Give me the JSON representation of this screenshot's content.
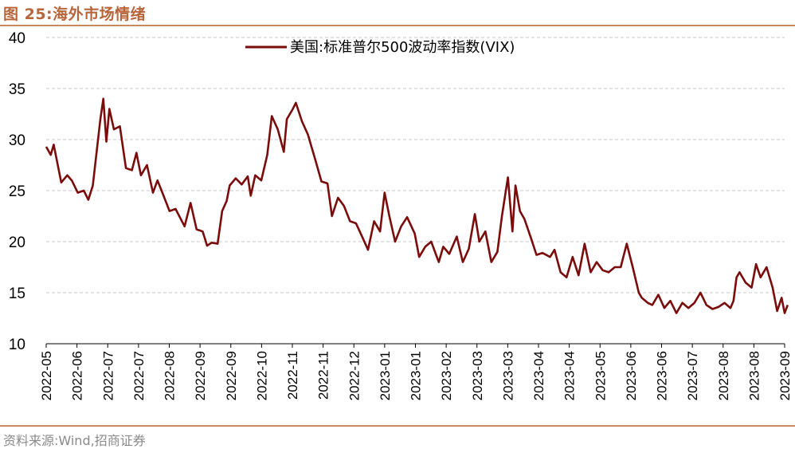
{
  "header": {
    "title": "图 25:海外市场情绪"
  },
  "footer": {
    "source": "资料来源:Wind,招商证券"
  },
  "colors": {
    "line": "#7b0c0c",
    "grid": "#c8c8c8",
    "accent": "#c88a5e"
  },
  "chart_data": {
    "type": "line",
    "title": "",
    "xlabel": "",
    "ylabel": "",
    "ylim": [
      10,
      40
    ],
    "yticks": [
      10,
      15,
      20,
      25,
      30,
      35,
      40
    ],
    "grid": "horizontal dashed",
    "legend_position": "top-center",
    "x_tick_labels": [
      "2022-05",
      "2022-06",
      "2022-07",
      "2022-07",
      "2022-08",
      "2022-09",
      "2022-09",
      "2022-10",
      "2022-11",
      "2022-11",
      "2022-12",
      "2023-01",
      "2023-01",
      "2023-02",
      "2023-03",
      "2023-03",
      "2023-04",
      "2023-04",
      "2023-05",
      "2023-06",
      "2023-06",
      "2023-07",
      "2023-08",
      "2023-08",
      "2023-09"
    ],
    "x_start": "2022-05-02",
    "x_end": "2023-09-05",
    "series": [
      {
        "name": "美国:标准普尔500波动率指数(VIX)",
        "color": "#7b0c0c",
        "points": [
          [
            "2022-05-02",
            29.3
          ],
          [
            "2022-05-05",
            28.5
          ],
          [
            "2022-05-07",
            29.5
          ],
          [
            "2022-05-12",
            25.8
          ],
          [
            "2022-05-16",
            26.5
          ],
          [
            "2022-05-19",
            26.0
          ],
          [
            "2022-05-23",
            24.8
          ],
          [
            "2022-05-27",
            25.0
          ],
          [
            "2022-05-30",
            24.1
          ],
          [
            "2022-06-02",
            25.5
          ],
          [
            "2022-06-07",
            32.0
          ],
          [
            "2022-06-09",
            34.0
          ],
          [
            "2022-06-11",
            29.8
          ],
          [
            "2022-06-13",
            33.0
          ],
          [
            "2022-06-16",
            31.0
          ],
          [
            "2022-06-20",
            31.3
          ],
          [
            "2022-06-24",
            27.2
          ],
          [
            "2022-06-28",
            27.0
          ],
          [
            "2022-07-01",
            28.7
          ],
          [
            "2022-07-04",
            26.5
          ],
          [
            "2022-07-08",
            27.5
          ],
          [
            "2022-07-12",
            24.8
          ],
          [
            "2022-07-15",
            26.0
          ],
          [
            "2022-07-19",
            24.5
          ],
          [
            "2022-07-23",
            23.0
          ],
          [
            "2022-07-27",
            23.2
          ],
          [
            "2022-08-02",
            21.5
          ],
          [
            "2022-08-06",
            23.8
          ],
          [
            "2022-08-10",
            21.2
          ],
          [
            "2022-08-14",
            21.0
          ],
          [
            "2022-08-17",
            19.6
          ],
          [
            "2022-08-20",
            19.9
          ],
          [
            "2022-08-24",
            19.8
          ],
          [
            "2022-08-27",
            23.0
          ],
          [
            "2022-08-30",
            24.0
          ],
          [
            "2022-09-01",
            25.5
          ],
          [
            "2022-09-05",
            26.2
          ],
          [
            "2022-09-09",
            25.6
          ],
          [
            "2022-09-13",
            26.4
          ],
          [
            "2022-09-15",
            24.5
          ],
          [
            "2022-09-18",
            26.5
          ],
          [
            "2022-09-22",
            26.0
          ],
          [
            "2022-09-26",
            28.5
          ],
          [
            "2022-09-29",
            32.3
          ],
          [
            "2022-10-03",
            31.0
          ],
          [
            "2022-10-07",
            28.8
          ],
          [
            "2022-10-09",
            32.0
          ],
          [
            "2022-10-13",
            33.0
          ],
          [
            "2022-10-15",
            33.6
          ],
          [
            "2022-10-19",
            31.8
          ],
          [
            "2022-10-23",
            30.5
          ],
          [
            "2022-10-28",
            28.0
          ],
          [
            "2022-11-01",
            25.9
          ],
          [
            "2022-11-05",
            25.7
          ],
          [
            "2022-11-08",
            22.5
          ],
          [
            "2022-11-12",
            24.3
          ],
          [
            "2022-11-16",
            23.5
          ],
          [
            "2022-11-20",
            22.0
          ],
          [
            "2022-11-24",
            21.8
          ],
          [
            "2022-11-28",
            20.5
          ],
          [
            "2022-12-02",
            19.2
          ],
          [
            "2022-12-06",
            22.0
          ],
          [
            "2022-12-10",
            21.0
          ],
          [
            "2022-12-13",
            24.8
          ],
          [
            "2022-12-16",
            22.6
          ],
          [
            "2022-12-20",
            20.0
          ],
          [
            "2022-12-24",
            21.5
          ],
          [
            "2022-12-28",
            22.4
          ],
          [
            "2023-01-02",
            20.8
          ],
          [
            "2023-01-05",
            18.5
          ],
          [
            "2023-01-09",
            19.5
          ],
          [
            "2023-01-13",
            20.0
          ],
          [
            "2023-01-18",
            18.0
          ],
          [
            "2023-01-21",
            19.5
          ],
          [
            "2023-01-25",
            18.8
          ],
          [
            "2023-01-30",
            20.5
          ],
          [
            "2023-02-03",
            18.0
          ],
          [
            "2023-02-07",
            19.3
          ],
          [
            "2023-02-11",
            22.7
          ],
          [
            "2023-02-14",
            20.0
          ],
          [
            "2023-02-18",
            21.0
          ],
          [
            "2023-02-22",
            18.0
          ],
          [
            "2023-02-26",
            19.0
          ],
          [
            "2023-03-01",
            22.5
          ],
          [
            "2023-03-05",
            26.3
          ],
          [
            "2023-03-08",
            21.0
          ],
          [
            "2023-03-10",
            25.5
          ],
          [
            "2023-03-13",
            23.0
          ],
          [
            "2023-03-16",
            22.2
          ],
          [
            "2023-03-20",
            20.5
          ],
          [
            "2023-03-24",
            18.7
          ],
          [
            "2023-03-28",
            18.9
          ],
          [
            "2023-04-02",
            18.5
          ],
          [
            "2023-04-05",
            19.2
          ],
          [
            "2023-04-09",
            17.0
          ],
          [
            "2023-04-13",
            16.5
          ],
          [
            "2023-04-17",
            18.5
          ],
          [
            "2023-04-21",
            16.7
          ],
          [
            "2023-04-25",
            19.8
          ],
          [
            "2023-04-29",
            17.0
          ],
          [
            "2023-05-03",
            18.0
          ],
          [
            "2023-05-07",
            17.2
          ],
          [
            "2023-05-11",
            17.0
          ],
          [
            "2023-05-15",
            17.5
          ],
          [
            "2023-05-19",
            17.5
          ],
          [
            "2023-05-23",
            19.8
          ],
          [
            "2023-05-27",
            17.5
          ],
          [
            "2023-05-31",
            15.0
          ],
          [
            "2023-06-02",
            14.5
          ],
          [
            "2023-06-06",
            14.0
          ],
          [
            "2023-06-09",
            13.8
          ],
          [
            "2023-06-13",
            14.8
          ],
          [
            "2023-06-17",
            13.5
          ],
          [
            "2023-06-21",
            14.2
          ],
          [
            "2023-06-25",
            13.0
          ],
          [
            "2023-06-29",
            14.0
          ],
          [
            "2023-07-03",
            13.5
          ],
          [
            "2023-07-07",
            14.0
          ],
          [
            "2023-07-11",
            15.0
          ],
          [
            "2023-07-15",
            13.8
          ],
          [
            "2023-07-19",
            13.4
          ],
          [
            "2023-07-23",
            13.6
          ],
          [
            "2023-07-27",
            14.0
          ],
          [
            "2023-07-31",
            13.5
          ],
          [
            "2023-08-02",
            14.2
          ],
          [
            "2023-08-04",
            16.5
          ],
          [
            "2023-08-06",
            17.0
          ],
          [
            "2023-08-10",
            16.0
          ],
          [
            "2023-08-14",
            15.5
          ],
          [
            "2023-08-17",
            17.8
          ],
          [
            "2023-08-20",
            16.5
          ],
          [
            "2023-08-24",
            17.5
          ],
          [
            "2023-08-28",
            15.5
          ],
          [
            "2023-08-31",
            13.2
          ],
          [
            "2023-09-03",
            14.5
          ],
          [
            "2023-09-05",
            13.0
          ],
          [
            "2023-09-07",
            13.8
          ]
        ]
      }
    ]
  }
}
